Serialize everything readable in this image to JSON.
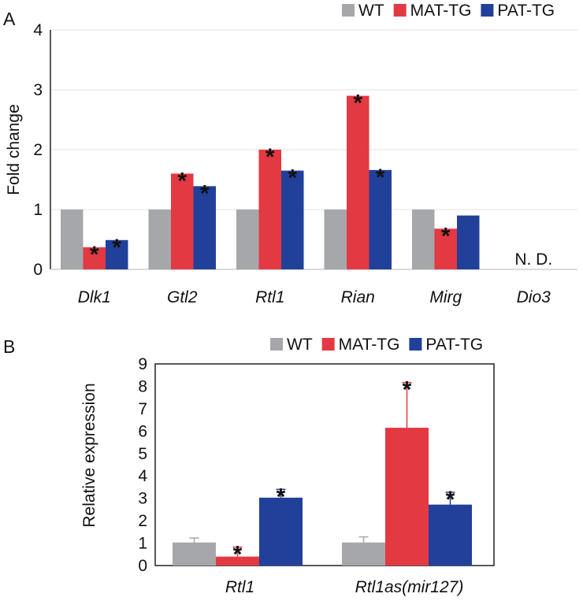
{
  "chart_data": [
    {
      "panel": "A",
      "type": "bar",
      "ylabel": "Fold change",
      "ylim": [
        0,
        4
      ],
      "yticks": [
        "0",
        "1",
        "2",
        "3",
        "4"
      ],
      "grid": true,
      "legend_position": "top-right",
      "categories": [
        "Dlk1",
        "Gtl2",
        "Rtl1",
        "Rian",
        "Mirg",
        "Dio3"
      ],
      "series": [
        {
          "name": "WT",
          "color": "#a6a7aa",
          "values": [
            1.0,
            1.0,
            1.0,
            1.0,
            1.0,
            null
          ],
          "stars": [
            false,
            false,
            false,
            false,
            false,
            false
          ]
        },
        {
          "name": "MAT-TG",
          "color": "#e33942",
          "values": [
            0.37,
            1.6,
            2.0,
            2.9,
            0.68,
            null
          ],
          "stars": [
            true,
            true,
            true,
            true,
            true,
            false
          ]
        },
        {
          "name": "PAT-TG",
          "color": "#21409a",
          "values": [
            0.49,
            1.39,
            1.65,
            1.66,
            0.9,
            null
          ],
          "stars": [
            true,
            true,
            true,
            true,
            false,
            false
          ]
        }
      ],
      "annotations": [
        {
          "category": "Dio3",
          "text": "N. D."
        }
      ]
    },
    {
      "panel": "B",
      "type": "bar",
      "ylabel": "Relative expression",
      "ylim": [
        0,
        9
      ],
      "yticks": [
        "0",
        "1",
        "2",
        "3",
        "4",
        "5",
        "6",
        "7",
        "8",
        "9"
      ],
      "grid": false,
      "legend_position": "top",
      "categories": [
        "Rtl1",
        "Rtl1as(mir127)"
      ],
      "series": [
        {
          "name": "WT",
          "color": "#a6a7aa",
          "values": [
            1.03,
            1.03
          ],
          "errors": [
            0.2,
            0.25
          ],
          "stars": [
            false,
            false
          ]
        },
        {
          "name": "MAT-TG",
          "color": "#e33942",
          "values": [
            0.4,
            6.15
          ],
          "errors": [
            0.42,
            2.02
          ],
          "stars": [
            true,
            true
          ]
        },
        {
          "name": "PAT-TG",
          "color": "#21409a",
          "values": [
            3.03,
            2.72
          ],
          "errors": [
            0.37,
            0.55
          ],
          "stars": [
            true,
            true
          ]
        }
      ]
    }
  ],
  "star_symbol": "*"
}
